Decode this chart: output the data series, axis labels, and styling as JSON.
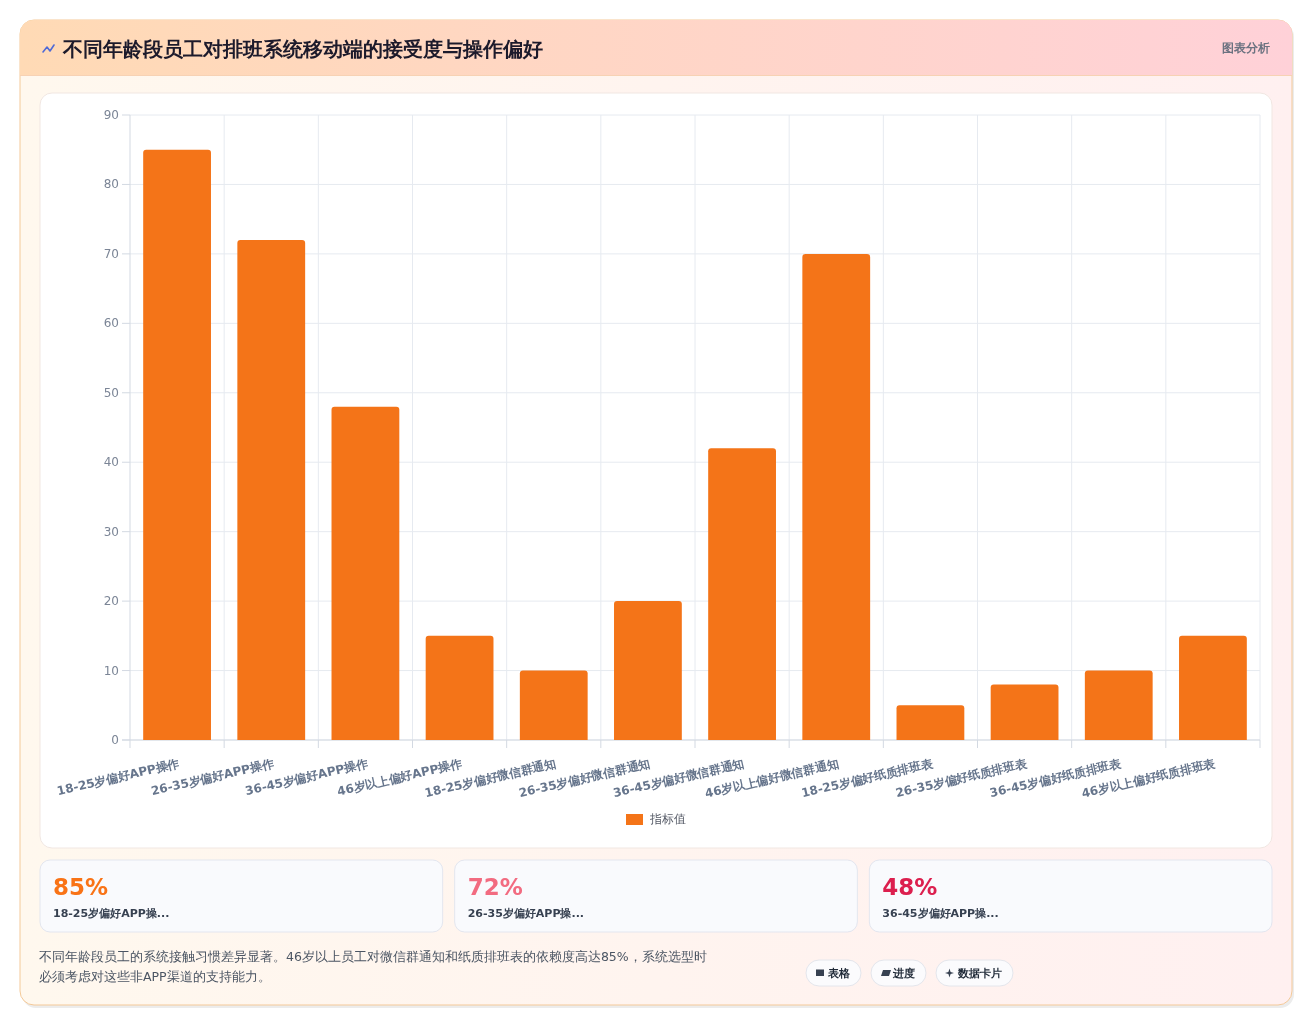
{
  "chart_data": [
    {
      "type": "bar",
      "title": "不同年龄段员工对排班系统移动端的接受度与操作偏好",
      "categories": [
        "18-25岁偏好APP操作",
        "26-35岁偏好APP操作",
        "36-45岁偏好APP操作",
        "46岁以上偏好APP操作",
        "18-25岁偏好微信群通知",
        "26-35岁偏好微信群通知",
        "36-45岁偏好微信群通知",
        "46岁以上偏好微信群通知",
        "18-25岁偏好纸质排班表",
        "26-35岁偏好纸质排班表",
        "36-45岁偏好纸质排班表",
        "46岁以上偏好纸质排班表"
      ],
      "series": [
        {
          "name": "指标值",
          "color": "#f47418",
          "values": [
            85,
            72,
            48,
            15,
            10,
            20,
            42,
            70,
            5,
            8,
            10,
            15
          ]
        }
      ],
      "ylim": [
        0,
        90
      ],
      "yticks": [
        0,
        10,
        20,
        30,
        40,
        50,
        60,
        70,
        80,
        90
      ],
      "grid": true,
      "legend": "bottom",
      "annotations": [
        "图表分析",
        "不同年龄段员工的系统接触习惯差异显著。46岁以上员工对微信群通知和纸质排班表的依赖度高达85%，系统选型时必须考虑对这些非APP渠道的支持能力。"
      ]
    },
    {
      "type": "other",
      "annotations": [
        "85%",
        "18-25岁偏好APP操...",
        "72%",
        "26-35岁偏好APP操...",
        "48%",
        "36-45岁偏好APP操..."
      ],
      "colors": [
        "#f97316",
        "#f26b80",
        "#dc1f4e"
      ]
    },
    {
      "type": "other",
      "annotations": [
        "表格",
        "进度",
        "数据卡片"
      ]
    }
  ]
}
